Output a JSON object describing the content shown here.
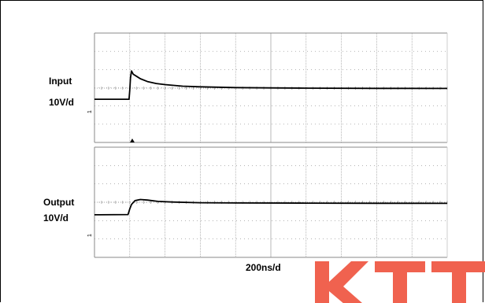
{
  "labels": {
    "input_name": "Input",
    "input_scale": "10V/d",
    "output_name": "Output",
    "output_scale": "10V/d",
    "time_scale": "200ns/d",
    "input_marker": "1",
    "output_marker": "1"
  },
  "watermark": {
    "text": "KTT",
    "color": "#f0624f"
  },
  "colors": {
    "trace": "#000000",
    "grid": "#888888",
    "background": "#ffffff"
  },
  "chart_data": [
    {
      "type": "line",
      "title": "",
      "ylabel": "Input 10V/d",
      "xlabel": "",
      "grid": true,
      "xlim": [
        0,
        10
      ],
      "ylim": [
        -4,
        4
      ],
      "series": [
        {
          "name": "",
          "x": [
            0,
            0.98,
            1.0,
            1.02,
            1.05,
            1.1,
            1.2,
            1.3,
            1.5,
            1.75,
            2.0,
            2.5,
            3.0,
            4.0,
            5.0,
            6.0,
            8.0,
            10.0
          ],
          "y": [
            -1.0,
            -1.0,
            -0.2,
            0.9,
            1.55,
            1.25,
            1.05,
            0.85,
            0.6,
            0.42,
            0.32,
            0.18,
            0.12,
            0.05,
            0.02,
            0.0,
            -0.02,
            -0.03
          ]
        }
      ]
    },
    {
      "type": "line",
      "title": "",
      "ylabel": "Output 10V/d",
      "xlabel": "200ns/d",
      "grid": true,
      "xlim": [
        0,
        10
      ],
      "ylim": [
        -4,
        4
      ],
      "series": [
        {
          "name": "",
          "x": [
            0,
            0.95,
            1.0,
            1.05,
            1.15,
            1.3,
            1.5,
            1.8,
            2.2,
            3.0,
            4.0,
            6.0,
            8.0,
            10.0
          ],
          "y": [
            -1.12,
            -1.1,
            -0.6,
            -0.2,
            0.15,
            0.25,
            0.2,
            0.08,
            0.02,
            -0.04,
            -0.06,
            -0.08,
            -0.09,
            -0.1
          ]
        }
      ]
    }
  ]
}
